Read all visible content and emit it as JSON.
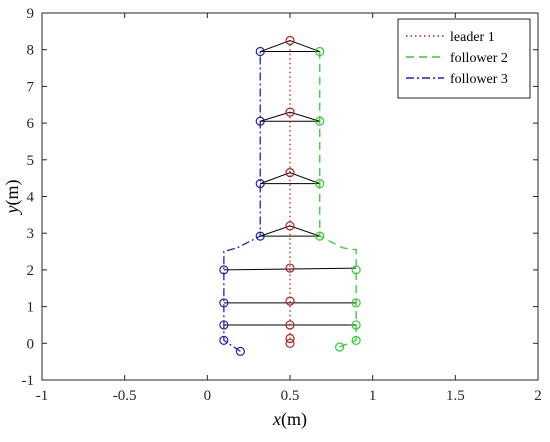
{
  "chart_data": {
    "type": "line",
    "title": "",
    "xlabel": {
      "symbol": "x",
      "unit": "(m)"
    },
    "ylabel": {
      "symbol": "y",
      "unit": "(m)"
    },
    "xlim": [
      -1,
      2
    ],
    "ylim": [
      -1,
      9
    ],
    "xticks": [
      -1,
      -0.5,
      0,
      0.5,
      1,
      1.5,
      2
    ],
    "xtick_labels": [
      "-1",
      "-0.5",
      "0",
      "0.5",
      "1",
      "1.5",
      "2"
    ],
    "yticks": [
      -1,
      0,
      1,
      2,
      3,
      4,
      5,
      6,
      7,
      8,
      9
    ],
    "ytick_labels": [
      "-1",
      "0",
      "1",
      "2",
      "3",
      "4",
      "5",
      "6",
      "7",
      "8",
      "9"
    ],
    "grid": false,
    "legend_position": "top-right",
    "series": [
      {
        "name": "leader 1",
        "color": "#B22222",
        "style": "dotted",
        "x": [
          0.5,
          0.5
        ],
        "y": [
          0.0,
          8.25
        ],
        "markers_x": [
          0.5,
          0.5,
          0.5,
          0.5,
          0.5,
          0.5,
          0.5,
          0.5,
          0.5
        ],
        "markers_y": [
          0.0,
          0.13,
          0.5,
          1.15,
          2.05,
          3.2,
          4.65,
          6.3,
          8.25
        ]
      },
      {
        "name": "follower 2",
        "color": "#33CC33",
        "style": "dashed",
        "x": [
          0.8,
          0.9,
          0.9,
          0.9,
          0.9,
          0.9,
          0.82,
          0.68,
          0.68,
          0.68,
          0.68,
          0.68
        ],
        "y": [
          -0.1,
          0.08,
          0.5,
          1.1,
          2.0,
          2.55,
          2.6,
          2.92,
          4.35,
          6.05,
          7.95,
          7.95
        ],
        "markers_x": [
          0.8,
          0.9,
          0.9,
          0.9,
          0.9,
          0.68,
          0.68,
          0.68,
          0.68
        ],
        "markers_y": [
          -0.1,
          0.08,
          0.5,
          1.1,
          2.0,
          2.92,
          4.35,
          6.05,
          7.95
        ]
      },
      {
        "name": "follower 3",
        "color": "#2222AA",
        "style": "dashdot",
        "x": [
          0.2,
          0.1,
          0.1,
          0.1,
          0.1,
          0.1,
          0.18,
          0.32,
          0.32,
          0.32,
          0.32
        ],
        "y": [
          -0.22,
          0.08,
          0.5,
          1.1,
          2.0,
          2.5,
          2.6,
          2.92,
          4.35,
          6.05,
          7.95
        ],
        "markers_x": [
          0.2,
          0.1,
          0.1,
          0.1,
          0.1,
          0.32,
          0.32,
          0.32,
          0.32
        ],
        "markers_y": [
          -0.22,
          0.08,
          0.5,
          1.1,
          2.0,
          2.92,
          4.35,
          6.05,
          7.95
        ]
      }
    ],
    "formation_links": [
      {
        "type": "line",
        "from": [
          0.1,
          0.5
        ],
        "to": [
          0.9,
          0.5
        ]
      },
      {
        "type": "line",
        "from": [
          0.1,
          1.1
        ],
        "to": [
          0.9,
          1.1
        ]
      },
      {
        "type": "line",
        "from": [
          0.1,
          2.0
        ],
        "to": [
          0.9,
          2.05
        ]
      },
      {
        "type": "triangle",
        "points": [
          [
            0.32,
            2.92
          ],
          [
            0.5,
            3.2
          ],
          [
            0.68,
            2.92
          ]
        ]
      },
      {
        "type": "triangle",
        "points": [
          [
            0.32,
            4.35
          ],
          [
            0.5,
            4.65
          ],
          [
            0.68,
            4.35
          ]
        ]
      },
      {
        "type": "triangle",
        "points": [
          [
            0.32,
            6.05
          ],
          [
            0.5,
            6.3
          ],
          [
            0.68,
            6.05
          ]
        ]
      },
      {
        "type": "triangle",
        "points": [
          [
            0.32,
            7.95
          ],
          [
            0.5,
            8.25
          ],
          [
            0.68,
            7.95
          ]
        ]
      }
    ]
  }
}
